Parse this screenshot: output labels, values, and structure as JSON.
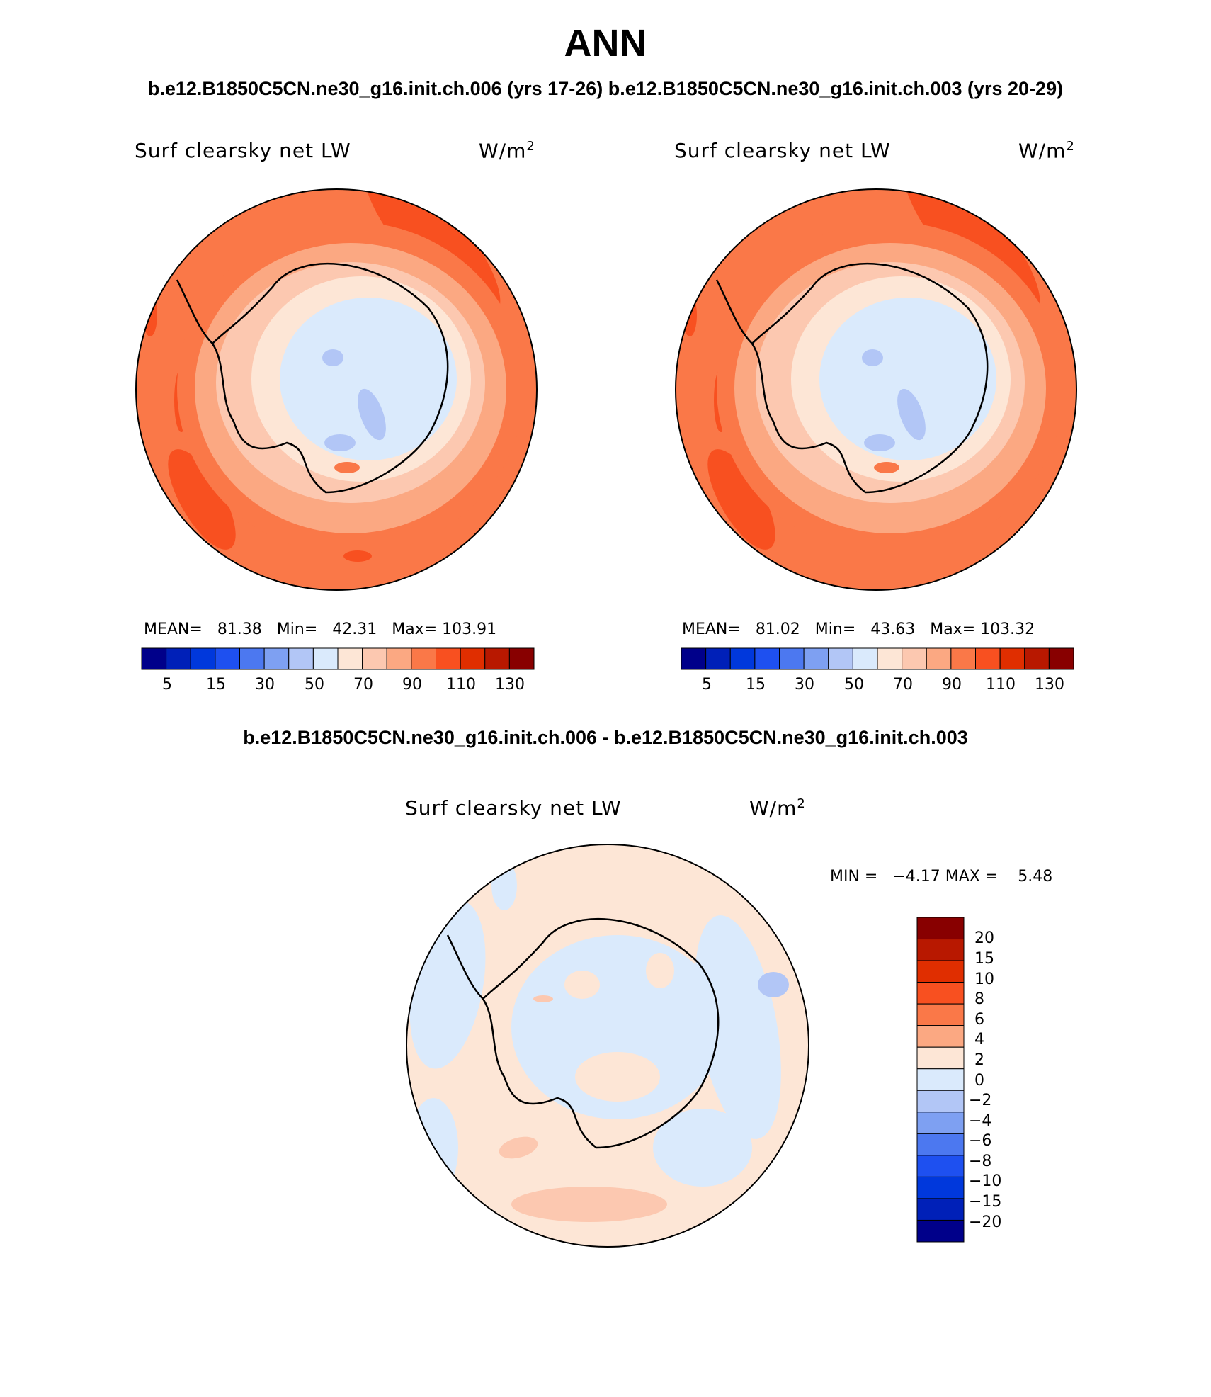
{
  "figure": {
    "title": "ANN",
    "cases_title_left": "b.e12.B1850C5CN.ne30_g16.init.ch.006 (yrs 17-26)",
    "cases_title_right": "b.e12.B1850C5CN.ne30_g16.init.ch.003 (yrs 20-29)",
    "diff_title": "b.e12.B1850C5CN.ne30_g16.init.ch.006 - b.e12.B1850C5CN.ne30_g16.init.ch.003"
  },
  "panels": [
    {
      "variable": "Surf clearsky net LW",
      "units": "W/m",
      "units_sup": "2",
      "mean_label": "MEAN=",
      "mean": "81.38",
      "min_label": "Min=",
      "min": "42.31",
      "max_label": "Max=",
      "max": "103.91"
    },
    {
      "variable": "Surf clearsky net LW",
      "units": "W/m",
      "units_sup": "2",
      "mean_label": "MEAN=",
      "mean": "81.02",
      "min_label": "Min=",
      "min": "43.63",
      "max_label": "Max=",
      "max": "103.32"
    }
  ],
  "diff_panel": {
    "variable": "Surf clearsky net LW",
    "units": "W/m",
    "units_sup": "2",
    "minmax_text": "MIN =   −4.17 MAX =    5.48"
  },
  "colorbar_horizontal": {
    "tick_labels": [
      "5",
      "15",
      "30",
      "50",
      "70",
      "90",
      "110",
      "130"
    ],
    "colors": [
      "#00008a",
      "#0020b8",
      "#0038dc",
      "#1e50f0",
      "#4c78f0",
      "#7ea0f2",
      "#b2c6f6",
      "#daeafc",
      "#fde6d6",
      "#fcc8b0",
      "#fba882",
      "#fa7848",
      "#f85020",
      "#e02e00",
      "#b81800",
      "#880000"
    ]
  },
  "colorbar_vertical": {
    "tick_labels": [
      "20",
      "15",
      "10",
      "8",
      "6",
      "4",
      "2",
      "0",
      "−2",
      "−4",
      "−6",
      "−8",
      "−10",
      "−15",
      "−20"
    ],
    "colors": [
      "#880000",
      "#b81800",
      "#e02e00",
      "#f85020",
      "#fa7848",
      "#fba882",
      "#fde6d6",
      "#daeafc",
      "#b2c6f6",
      "#7ea0f2",
      "#4c78f0",
      "#1e50f0",
      "#0038dc",
      "#0020b8",
      "#00008a"
    ]
  }
}
